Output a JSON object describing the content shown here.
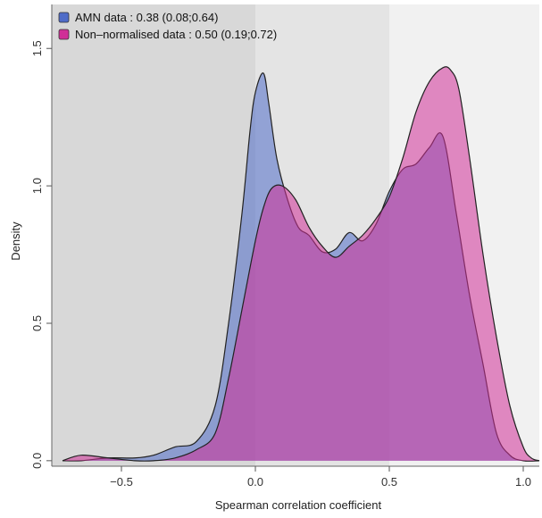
{
  "chart_data": {
    "type": "area",
    "xlabel": "Spearman correlation coefficient",
    "ylabel": "Density",
    "xlim": [
      -0.76,
      1.06
    ],
    "ylim": [
      -0.02,
      1.66
    ],
    "xticks": [
      -0.5,
      0.0,
      0.5,
      1.0
    ],
    "xtick_labels": [
      "−0.5",
      "0.0",
      "0.5",
      "1.0"
    ],
    "yticks": [
      0.0,
      0.5,
      1.0,
      1.5
    ],
    "ytick_labels": [
      "0.0",
      "0.5",
      "1.0",
      "1.5"
    ],
    "background_bands": [
      {
        "from": -0.76,
        "to": 0.0,
        "color": "#d8d8d8"
      },
      {
        "from": 0.0,
        "to": 0.5,
        "color": "#e4e4e4"
      },
      {
        "from": 0.5,
        "to": 1.06,
        "color": "#f1f1f1"
      }
    ],
    "legend_position": "top-left",
    "series": [
      {
        "name": "AMN data : 0.38 (0.08;0.64)",
        "color": "#4f6cc8",
        "x": [
          -0.72,
          -0.65,
          -0.55,
          -0.45,
          -0.38,
          -0.3,
          -0.22,
          -0.15,
          -0.1,
          -0.05,
          -0.02,
          0.0,
          0.03,
          0.05,
          0.08,
          0.12,
          0.16,
          0.2,
          0.25,
          0.3,
          0.35,
          0.4,
          0.45,
          0.5,
          0.55,
          0.6,
          0.65,
          0.7,
          0.75,
          0.8,
          0.85,
          0.9,
          0.95,
          1.0,
          1.06
        ],
        "y": [
          0.0,
          0.0,
          0.01,
          0.01,
          0.02,
          0.05,
          0.07,
          0.2,
          0.5,
          0.9,
          1.2,
          1.34,
          1.41,
          1.3,
          1.1,
          0.95,
          0.85,
          0.82,
          0.76,
          0.77,
          0.83,
          0.8,
          0.86,
          0.98,
          1.06,
          1.08,
          1.14,
          1.18,
          0.9,
          0.6,
          0.35,
          0.1,
          0.02,
          0.0,
          0.0
        ]
      },
      {
        "name": "Non–normalised data : 0.50 (0.19;0.72)",
        "color": "#d02f97",
        "x": [
          -0.72,
          -0.65,
          -0.55,
          -0.45,
          -0.38,
          -0.3,
          -0.22,
          -0.15,
          -0.1,
          -0.05,
          0.0,
          0.03,
          0.06,
          0.1,
          0.15,
          0.2,
          0.25,
          0.3,
          0.35,
          0.4,
          0.45,
          0.5,
          0.55,
          0.6,
          0.65,
          0.7,
          0.73,
          0.76,
          0.8,
          0.85,
          0.9,
          0.95,
          1.0,
          1.03,
          1.06
        ],
        "y": [
          0.0,
          0.02,
          0.01,
          0.0,
          0.0,
          0.01,
          0.04,
          0.1,
          0.3,
          0.55,
          0.8,
          0.92,
          0.99,
          1.0,
          0.95,
          0.85,
          0.78,
          0.74,
          0.78,
          0.82,
          0.88,
          0.96,
          1.1,
          1.27,
          1.38,
          1.43,
          1.42,
          1.35,
          1.1,
          0.75,
          0.45,
          0.2,
          0.05,
          0.01,
          0.0
        ]
      }
    ]
  }
}
